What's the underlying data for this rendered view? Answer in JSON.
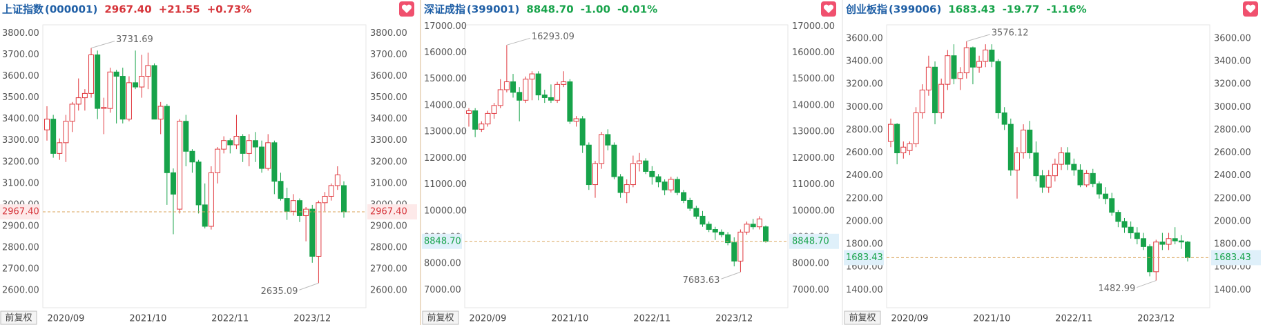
{
  "chart_data": [
    {
      "type": "candlestick",
      "title": "上证指数",
      "code": "(000001)",
      "price": "2967.40",
      "change": "+21.55",
      "change_pct": "+0.73%",
      "quote_color": "#d6343a",
      "adjust_button": "前复权",
      "up_color": "#e0383e",
      "down_color": "#17a34a",
      "ylim": [
        2520,
        3840
      ],
      "yticks": [
        {
          "value": 2600,
          "label": "2600.00"
        },
        {
          "value": 2700,
          "label": "2700.00"
        },
        {
          "value": 2800,
          "label": "2800.00"
        },
        {
          "value": 2900,
          "label": "2900.00"
        },
        {
          "value": 3000,
          "label": "3000.00"
        },
        {
          "value": 3100,
          "label": "3100.00"
        },
        {
          "value": 3200,
          "label": "3200.00"
        },
        {
          "value": 3300,
          "label": "3300.00"
        },
        {
          "value": 3400,
          "label": "3400.00"
        },
        {
          "value": 3500,
          "label": "3500.00"
        },
        {
          "value": 3600,
          "label": "3600.00"
        },
        {
          "value": 3700,
          "label": "3700.00"
        },
        {
          "value": 3800,
          "label": "3800.00"
        }
      ],
      "categories": [
        null,
        null,
        null,
        "2020/09",
        null,
        null,
        null,
        null,
        null,
        null,
        null,
        null,
        null,
        null,
        null,
        null,
        "2021/10",
        null,
        null,
        null,
        null,
        null,
        null,
        null,
        null,
        null,
        null,
        null,
        null,
        "2022/11",
        null,
        null,
        null,
        null,
        null,
        null,
        null,
        null,
        null,
        null,
        null,
        null,
        "2023/12",
        null,
        null,
        null,
        null,
        null
      ],
      "open": [
        3350,
        3400,
        3240,
        3290,
        3390,
        3470,
        3500,
        3520,
        3700,
        3450,
        3450,
        3620,
        3600,
        3400,
        3570,
        3550,
        3600,
        3650,
        3400,
        3460,
        3150,
        2980,
        3390,
        3250,
        3200,
        3000,
        2900,
        3150,
        3260,
        3300,
        3280,
        3320,
        3240,
        3300,
        3270,
        3170,
        3290,
        3110,
        3030,
        2970,
        3020,
        2950,
        2980,
        2760,
        3010,
        3040,
        3090,
        3090
      ],
      "high": [
        3460,
        3420,
        3310,
        3420,
        3480,
        3590,
        3540,
        3731.69,
        3720,
        3500,
        3640,
        3630,
        3640,
        3600,
        3720,
        3700,
        3710,
        3660,
        3480,
        3470,
        3170,
        3400,
        3420,
        3260,
        3210,
        3100,
        3180,
        3270,
        3320,
        3310,
        3420,
        3330,
        3330,
        3340,
        3300,
        3330,
        3300,
        3150,
        3080,
        3050,
        3030,
        2990,
        3000,
        3020,
        3060,
        3100,
        3180,
        3110
      ],
      "low": [
        3300,
        3220,
        3210,
        3200,
        3340,
        3440,
        3440,
        3500,
        3400,
        3330,
        3430,
        3380,
        3380,
        3390,
        3540,
        3500,
        3540,
        3400,
        3330,
        3000,
        2863,
        2960,
        3180,
        3150,
        2960,
        2890,
        2885,
        3100,
        3240,
        3240,
        3260,
        3200,
        3180,
        3200,
        3150,
        3160,
        3050,
        3020,
        2930,
        2950,
        2920,
        2830,
        2730,
        2635.09,
        2970,
        3020,
        3070,
        2940
      ],
      "close": [
        3400,
        3240,
        3290,
        3390,
        3470,
        3500,
        3520,
        3700,
        3450,
        3455,
        3620,
        3600,
        3400,
        3570,
        3550,
        3600,
        3650,
        3400,
        3460,
        3150,
        3050,
        3390,
        3250,
        3200,
        3000,
        2900,
        3150,
        3260,
        3300,
        3280,
        3320,
        3240,
        3300,
        3270,
        3170,
        3290,
        3110,
        3030,
        2970,
        3020,
        2950,
        2980,
        2760,
        3010,
        3040,
        3090,
        3140,
        2967.4
      ]
    },
    {
      "type": "candlestick",
      "title": "深证成指",
      "code": "(399001)",
      "price": "8848.70",
      "change": "-1.00",
      "change_pct": "-0.01%",
      "quote_color": "#17a34a",
      "adjust_button": "前复权",
      "up_color": "#e0383e",
      "down_color": "#17a34a",
      "ylim": [
        6330,
        17060
      ],
      "yticks": [
        {
          "value": 7000,
          "label": "7000.00"
        },
        {
          "value": 8000,
          "label": "8000.00"
        },
        {
          "value": 9000,
          "label": "9000.00"
        },
        {
          "value": 10000,
          "label": "10000.00"
        },
        {
          "value": 11000,
          "label": "11000.00"
        },
        {
          "value": 12000,
          "label": "12000.00"
        },
        {
          "value": 13000,
          "label": "13000.00"
        },
        {
          "value": 14000,
          "label": "14000.00"
        },
        {
          "value": 15000,
          "label": "15000.00"
        },
        {
          "value": 16000,
          "label": "16000.00"
        },
        {
          "value": 17000,
          "label": "17000.00"
        }
      ],
      "categories": [
        null,
        null,
        null,
        "2020/09",
        null,
        null,
        null,
        null,
        null,
        null,
        null,
        null,
        null,
        null,
        null,
        null,
        "2021/10",
        null,
        null,
        null,
        null,
        null,
        null,
        null,
        null,
        null,
        null,
        null,
        null,
        "2022/11",
        null,
        null,
        null,
        null,
        null,
        null,
        null,
        null,
        null,
        null,
        null,
        null,
        "2023/12",
        null,
        null,
        null,
        null,
        null
      ],
      "open": [
        13700,
        13800,
        13100,
        13300,
        13700,
        14000,
        14600,
        14900,
        14500,
        14200,
        15000,
        15200,
        14400,
        14300,
        14200,
        14800,
        14900,
        13400,
        13500,
        12500,
        11000,
        11800,
        12900,
        12500,
        11300,
        10700,
        11000,
        11800,
        11900,
        11500,
        11300,
        11100,
        10800,
        11200,
        10700,
        10400,
        10100,
        9800,
        9500,
        9300,
        9200,
        9100,
        8800,
        8100,
        9200,
        9500,
        9400,
        9400
      ],
      "high": [
        13900,
        13900,
        13400,
        13800,
        14100,
        15000,
        16293.09,
        15200,
        14700,
        15100,
        15300,
        15300,
        14600,
        14800,
        14900,
        15300,
        15000,
        13600,
        13600,
        12600,
        11900,
        13000,
        13100,
        12600,
        11400,
        11200,
        12100,
        12200,
        12000,
        11700,
        11400,
        11200,
        11300,
        11300,
        10800,
        10500,
        10200,
        10000,
        9600,
        9400,
        9300,
        9200,
        9000,
        9300,
        9600,
        9700,
        9800,
        9450
      ],
      "low": [
        13200,
        12800,
        13000,
        13200,
        13500,
        13900,
        14500,
        14300,
        13400,
        14100,
        14200,
        14200,
        14100,
        14100,
        14100,
        14700,
        13300,
        13200,
        12200,
        10800,
        10500,
        11600,
        12300,
        11200,
        10500,
        10300,
        10900,
        11500,
        11400,
        11000,
        10900,
        10600,
        10700,
        10600,
        10300,
        10000,
        9700,
        9400,
        9200,
        8900,
        9000,
        8700,
        7900,
        7683.63,
        9100,
        9300,
        9300,
        8800
      ],
      "close": [
        13800,
        13100,
        13300,
        13700,
        14000,
        14600,
        14900,
        14500,
        14200,
        15000,
        15200,
        14400,
        14300,
        14200,
        14800,
        14900,
        13400,
        13500,
        12500,
        11000,
        11800,
        12900,
        12500,
        11300,
        10700,
        11000,
        11800,
        11900,
        11500,
        11300,
        11100,
        10800,
        11200,
        10700,
        10400,
        10100,
        9800,
        9500,
        9300,
        9200,
        9100,
        8800,
        8100,
        9200,
        9500,
        9400,
        9700,
        8848.7
      ]
    },
    {
      "type": "candlestick",
      "title": "创业板指",
      "code": "(399006)",
      "price": "1683.43",
      "change": "-19.77",
      "change_pct": "-1.16%",
      "quote_color": "#17a34a",
      "adjust_button": "前复权",
      "up_color": "#e0383e",
      "down_color": "#17a34a",
      "ylim": [
        1245,
        3720
      ],
      "yticks": [
        {
          "value": 1400,
          "label": "1400.00"
        },
        {
          "value": 1600,
          "label": "1600.00"
        },
        {
          "value": 1800,
          "label": "1800.00"
        },
        {
          "value": 2000,
          "label": "2000.00"
        },
        {
          "value": 2200,
          "label": "2200.00"
        },
        {
          "value": 2400,
          "label": "2400.00"
        },
        {
          "value": 2600,
          "label": "2600.00"
        },
        {
          "value": 2800,
          "label": "2800.00"
        },
        {
          "value": 3000,
          "label": "3000.00"
        },
        {
          "value": 3200,
          "label": "3200.00"
        },
        {
          "value": 3400,
          "label": "3400.00"
        },
        {
          "value": 3600,
          "label": "3600.00"
        }
      ],
      "categories": [
        null,
        null,
        null,
        "2020/09",
        null,
        null,
        null,
        null,
        null,
        null,
        null,
        null,
        null,
        null,
        null,
        null,
        "2021/10",
        null,
        null,
        null,
        null,
        null,
        null,
        null,
        null,
        null,
        null,
        null,
        null,
        "2022/11",
        null,
        null,
        null,
        null,
        null,
        null,
        null,
        null,
        null,
        null,
        null,
        null,
        "2023/12",
        null,
        null,
        null,
        null,
        null
      ],
      "open": [
        2700,
        2850,
        2600,
        2620,
        2680,
        2950,
        3150,
        3350,
        2950,
        3200,
        3450,
        3250,
        3300,
        3520,
        3350,
        3400,
        3500,
        3400,
        2950,
        2850,
        2450,
        2600,
        2800,
        2600,
        2400,
        2300,
        2400,
        2500,
        2600,
        2500,
        2450,
        2320,
        2420,
        2330,
        2240,
        2200,
        2080,
        2000,
        1950,
        1900,
        1850,
        1780,
        1560,
        1820,
        1800,
        1850,
        1830,
        1820
      ],
      "high": [
        2900,
        2860,
        2700,
        2700,
        3000,
        3200,
        3450,
        3400,
        3250,
        3500,
        3550,
        3350,
        3576.12,
        3530,
        3450,
        3550,
        3550,
        3420,
        3000,
        2900,
        2650,
        2850,
        2880,
        2700,
        2450,
        2450,
        2550,
        2650,
        2650,
        2550,
        2500,
        2450,
        2460,
        2350,
        2300,
        2250,
        2100,
        2030,
        2000,
        1950,
        1900,
        1800,
        1840,
        1900,
        1900,
        1950,
        1880,
        1830
      ],
      "low": [
        2650,
        2500,
        2550,
        2580,
        2650,
        2900,
        3100,
        2850,
        2900,
        3150,
        3200,
        3150,
        3250,
        3200,
        3300,
        3350,
        3350,
        2900,
        2800,
        2400,
        2200,
        2550,
        2550,
        2350,
        2250,
        2250,
        2350,
        2450,
        2450,
        2400,
        2300,
        2300,
        2300,
        2200,
        2150,
        2050,
        1950,
        1900,
        1850,
        1800,
        1750,
        1520,
        1482.99,
        1750,
        1750,
        1800,
        1760,
        1650
      ],
      "close": [
        2850,
        2600,
        2650,
        2680,
        2950,
        3150,
        3350,
        2950,
        3200,
        3450,
        3250,
        3300,
        3520,
        3350,
        3400,
        3500,
        3400,
        2950,
        2850,
        2450,
        2600,
        2800,
        2600,
        2400,
        2300,
        2400,
        2500,
        2600,
        2500,
        2450,
        2320,
        2420,
        2330,
        2240,
        2200,
        2080,
        2000,
        1950,
        1900,
        1850,
        1780,
        1560,
        1820,
        1800,
        1850,
        1830,
        1820,
        1683.43
      ]
    }
  ]
}
